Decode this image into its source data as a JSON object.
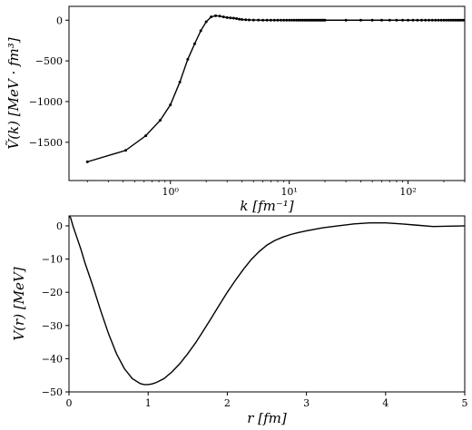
{
  "chart_data": [
    {
      "type": "line",
      "xlabel": "k [fm⁻¹]",
      "ylabel": "Ṽ(k) [MeV · fm³]",
      "xscale": "log",
      "xlim": [
        0.14,
        300
      ],
      "ylim": [
        -1970,
        170
      ],
      "xticks": [
        1,
        10,
        100
      ],
      "xtick_labels": [
        "10⁰",
        "10¹",
        "10²"
      ],
      "yticks": [
        0,
        -500,
        -1000,
        -1500
      ],
      "ytick_labels": [
        "0",
        "−500",
        "−1000",
        "−1500"
      ],
      "markers": true,
      "grid": false,
      "x": [
        0.2,
        0.42,
        0.62,
        0.82,
        1.0,
        1.2,
        1.4,
        1.6,
        1.8,
        2.0,
        2.2,
        2.4,
        2.6,
        2.8,
        3.0,
        3.2,
        3.4,
        3.6,
        3.8,
        4.0,
        4.3,
        4.6,
        5.0,
        5.5,
        6.0,
        6.5,
        7.0,
        7.5,
        8.0,
        8.5,
        9.0,
        9.5,
        10.0,
        10.5,
        11.0,
        11.5,
        12.0,
        12.5,
        13.0,
        13.5,
        14.0,
        14.5,
        15.0,
        15.5,
        16.0,
        16.5,
        17.0,
        17.5,
        18.0,
        18.5,
        19.0,
        19.5,
        20.0,
        30,
        40,
        50,
        60,
        70,
        80,
        90,
        100,
        110,
        120,
        130,
        140,
        150,
        160,
        170,
        180,
        190,
        200,
        210,
        220,
        230,
        240,
        250,
        260,
        270,
        280,
        290,
        300
      ],
      "y": [
        -1740,
        -1600,
        -1420,
        -1230,
        -1040,
        -760,
        -480,
        -290,
        -130,
        -20,
        40,
        55,
        50,
        40,
        32,
        28,
        25,
        20,
        12,
        8,
        5,
        3,
        2,
        1,
        0,
        0,
        0,
        0,
        0,
        0,
        0,
        0,
        0,
        0,
        0,
        0,
        0,
        0,
        0,
        0,
        0,
        0,
        0,
        0,
        0,
        0,
        0,
        0,
        0,
        0,
        0,
        0,
        0,
        0,
        0,
        0,
        0,
        0,
        0,
        0,
        0,
        0,
        0,
        0,
        0,
        0,
        0,
        0,
        0,
        0,
        0,
        0,
        0,
        0,
        0,
        0,
        0,
        0,
        0,
        0,
        0
      ]
    },
    {
      "type": "line",
      "xlabel": "r [fm]",
      "ylabel": "V(r) [MeV]",
      "xscale": "linear",
      "xlim": [
        0,
        5
      ],
      "ylim": [
        -50,
        3
      ],
      "xticks": [
        0,
        1,
        2,
        3,
        4,
        5
      ],
      "xtick_labels": [
        "0",
        "1",
        "2",
        "3",
        "4",
        "5"
      ],
      "yticks": [
        0,
        -10,
        -20,
        -30,
        -40,
        -50
      ],
      "ytick_labels": [
        "0",
        "−10",
        "−20",
        "−30",
        "−40",
        "−50"
      ],
      "markers": false,
      "grid": false,
      "x": [
        0.0,
        0.02,
        0.05,
        0.1,
        0.15,
        0.2,
        0.3,
        0.4,
        0.5,
        0.6,
        0.7,
        0.8,
        0.9,
        0.95,
        1.0,
        1.05,
        1.1,
        1.2,
        1.3,
        1.4,
        1.5,
        1.6,
        1.7,
        1.8,
        1.9,
        2.0,
        2.1,
        2.2,
        2.3,
        2.4,
        2.5,
        2.6,
        2.7,
        2.8,
        2.9,
        3.0,
        3.2,
        3.4,
        3.6,
        3.8,
        4.0,
        4.2,
        4.4,
        4.6,
        4.8,
        5.0
      ],
      "y": [
        3,
        2.5,
        0.0,
        -3.5,
        -7.0,
        -11,
        -18,
        -25.5,
        -32.5,
        -38.5,
        -43,
        -46,
        -47.5,
        -47.8,
        -47.8,
        -47.6,
        -47.2,
        -46,
        -44,
        -41.5,
        -38.5,
        -35.2,
        -31.5,
        -27.7,
        -23.8,
        -20,
        -16.5,
        -13.2,
        -10.2,
        -7.8,
        -5.8,
        -4.4,
        -3.4,
        -2.6,
        -2.0,
        -1.5,
        -0.6,
        0.0,
        0.6,
        0.9,
        0.9,
        0.6,
        0.2,
        -0.2,
        -0.1,
        0.0
      ]
    }
  ]
}
